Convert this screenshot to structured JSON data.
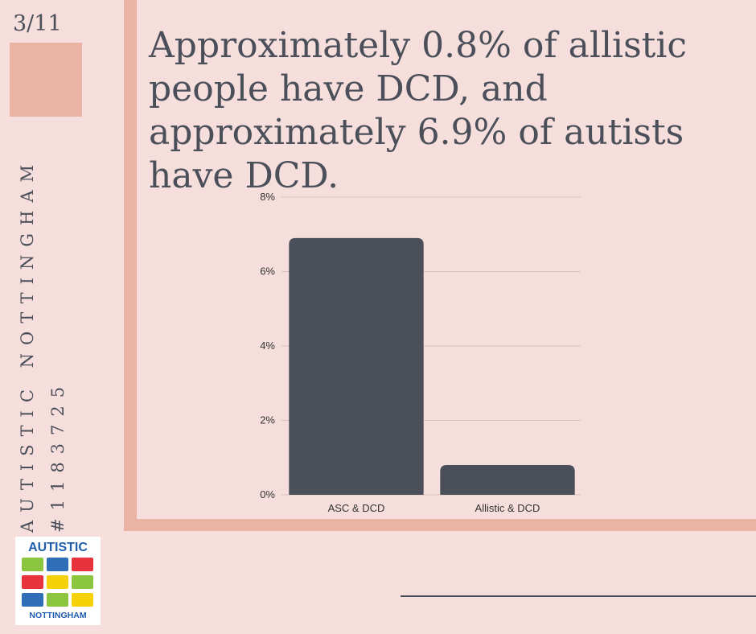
{
  "page_number": "3/11",
  "headline": "Approximately 0.8% of allistic people have DCD, and approximately 6.9% of autists have DCD.",
  "side_text": {
    "organisation": "AUTISTIC NOTTINGHAM",
    "charity_number": "#1183725"
  },
  "logo": {
    "top_text": "AUTISTIC",
    "bottom_text": "NOTTINGHAM",
    "square_colors": [
      "#8cc63f",
      "#2f6fb7",
      "#e8323c",
      "#e8323c",
      "#f5d10a",
      "#8cc63f",
      "#2f6fb7",
      "#8cc63f",
      "#f5d10a"
    ]
  },
  "colors": {
    "background": "#f5dedb",
    "accent": "#e9b4a3",
    "bar": "#4a4f5a",
    "text": "#4a4f5a"
  },
  "chart_data": {
    "type": "bar",
    "categories": [
      "ASC & DCD",
      "Allistic & DCD"
    ],
    "values": [
      6.9,
      0.8
    ],
    "ylim": [
      0,
      8
    ],
    "yticks": [
      0,
      2,
      4,
      6,
      8
    ],
    "ytick_labels": [
      "0%",
      "2%",
      "4%",
      "6%",
      "8%"
    ],
    "grid": true,
    "legend": false
  }
}
